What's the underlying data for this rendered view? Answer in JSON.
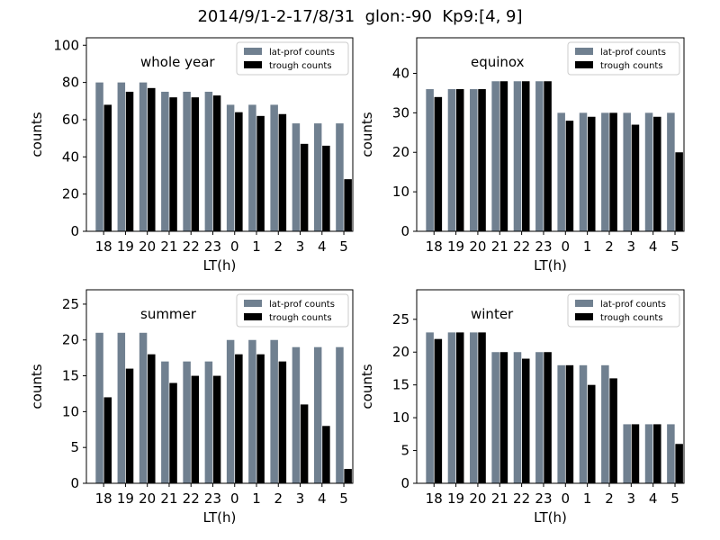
{
  "suptitle": "2014/9/1-2-17/8/31  glon:-90  Kp9:[4, 9]",
  "colors": {
    "lat_prof": "#708090",
    "trough": "#000000"
  },
  "chart_data": [
    {
      "type": "bar",
      "annotation": "whole year",
      "xlabel": "LT(h)",
      "ylabel": "counts",
      "categories": [
        "18",
        "19",
        "20",
        "21",
        "22",
        "23",
        "0",
        "1",
        "2",
        "3",
        "4",
        "5"
      ],
      "ylim": [
        0,
        104
      ],
      "yticks": [
        0,
        20,
        40,
        60,
        80,
        100
      ],
      "legend_position": "upper right",
      "series": [
        {
          "name": "lat-prof counts",
          "values": [
            80,
            80,
            80,
            75,
            75,
            75,
            68,
            68,
            68,
            58,
            58,
            58
          ]
        },
        {
          "name": "trough counts",
          "values": [
            68,
            75,
            77,
            72,
            72,
            73,
            64,
            62,
            63,
            47,
            46,
            28
          ]
        }
      ]
    },
    {
      "type": "bar",
      "annotation": "equinox",
      "xlabel": "LT(h)",
      "ylabel": "counts",
      "categories": [
        "18",
        "19",
        "20",
        "21",
        "22",
        "23",
        "0",
        "1",
        "2",
        "3",
        "4",
        "5"
      ],
      "ylim": [
        0,
        49
      ],
      "yticks": [
        0,
        10,
        20,
        30,
        40
      ],
      "legend_position": "upper right",
      "series": [
        {
          "name": "lat-prof counts",
          "values": [
            36,
            36,
            36,
            38,
            38,
            38,
            30,
            30,
            30,
            30,
            30,
            30
          ]
        },
        {
          "name": "trough counts",
          "values": [
            34,
            36,
            36,
            38,
            38,
            38,
            28,
            29,
            30,
            27,
            29,
            20
          ]
        }
      ]
    },
    {
      "type": "bar",
      "annotation": "summer",
      "xlabel": "LT(h)",
      "ylabel": "counts",
      "categories": [
        "18",
        "19",
        "20",
        "21",
        "22",
        "23",
        "0",
        "1",
        "2",
        "3",
        "4",
        "5"
      ],
      "ylim": [
        0,
        27
      ],
      "yticks": [
        0,
        5,
        10,
        15,
        20,
        25
      ],
      "legend_position": "upper right",
      "series": [
        {
          "name": "lat-prof counts",
          "values": [
            21,
            21,
            21,
            17,
            17,
            17,
            20,
            20,
            20,
            19,
            19,
            19
          ]
        },
        {
          "name": "trough counts",
          "values": [
            12,
            16,
            18,
            14,
            15,
            15,
            18,
            18,
            17,
            11,
            8,
            2
          ]
        }
      ]
    },
    {
      "type": "bar",
      "annotation": "winter",
      "xlabel": "LT(h)",
      "ylabel": "counts",
      "categories": [
        "18",
        "19",
        "20",
        "21",
        "22",
        "23",
        "0",
        "1",
        "2",
        "3",
        "4",
        "5"
      ],
      "ylim": [
        0,
        29.5
      ],
      "yticks": [
        0,
        5,
        10,
        15,
        20,
        25
      ],
      "legend_position": "upper right",
      "series": [
        {
          "name": "lat-prof counts",
          "values": [
            23,
            23,
            23,
            20,
            20,
            20,
            18,
            18,
            18,
            9,
            9,
            9
          ]
        },
        {
          "name": "trough counts",
          "values": [
            22,
            23,
            23,
            20,
            19,
            20,
            18,
            15,
            16,
            9,
            9,
            6
          ]
        }
      ]
    }
  ]
}
